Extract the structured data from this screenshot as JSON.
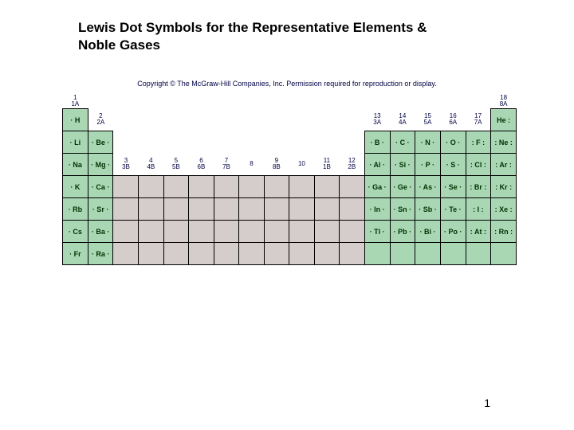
{
  "title": "Lewis Dot Symbols for the Representative Elements & Noble Gases",
  "copyright": "Copyright © The McGraw-Hill Companies, Inc. Permission required for reproduction or display.",
  "page_number": "1",
  "colors": {
    "green_cell": "#a9d7b4",
    "gray_cell": "#d5cccc",
    "border": "#000000",
    "title_text": "#000000",
    "header_text": "#000044",
    "bg": "#ffffff"
  },
  "group_headers": [
    {
      "col": 0,
      "num": "1",
      "old": "1A"
    },
    {
      "col": 1,
      "num": "2",
      "old": "2A"
    },
    {
      "col": 2,
      "num": "3",
      "old": "3B"
    },
    {
      "col": 3,
      "num": "4",
      "old": "4B"
    },
    {
      "col": 4,
      "num": "5",
      "old": "5B"
    },
    {
      "col": 5,
      "num": "6",
      "old": "6B"
    },
    {
      "col": 6,
      "num": "7",
      "old": "7B"
    },
    {
      "col": 7,
      "num": "8",
      "old": ""
    },
    {
      "col": 8,
      "num": "9",
      "old": "8B"
    },
    {
      "col": 9,
      "num": "10",
      "old": ""
    },
    {
      "col": 10,
      "num": "11",
      "old": "1B"
    },
    {
      "col": 11,
      "num": "12",
      "old": "2B"
    },
    {
      "col": 12,
      "num": "13",
      "old": "3A"
    },
    {
      "col": 13,
      "num": "14",
      "old": "4A"
    },
    {
      "col": 14,
      "num": "15",
      "old": "5A"
    },
    {
      "col": 15,
      "num": "16",
      "old": "6A"
    },
    {
      "col": 16,
      "num": "17",
      "old": "7A"
    },
    {
      "col": 17,
      "num": "18",
      "old": "8A"
    }
  ],
  "elements": {
    "r1": {
      "c0": "· H",
      "c17": "He :"
    },
    "r2": {
      "c0": "· Li",
      "c1": "· Be ·",
      "c12": "· B ·",
      "c13": "· C ·",
      "c14": "· N ·",
      "c15": "· O ·",
      "c16": ": F :",
      "c17": ": Ne :"
    },
    "r3": {
      "c0": "· Na",
      "c1": "· Mg ·",
      "c12": "· Al ·",
      "c13": "· Si ·",
      "c14": "· P ·",
      "c15": "· S ·",
      "c16": ": Cl :",
      "c17": ": Ar :"
    },
    "r4": {
      "c0": "· K",
      "c1": "· Ca ·",
      "c12": "· Ga ·",
      "c13": "· Ge ·",
      "c14": "· As ·",
      "c15": "· Se ·",
      "c16": ": Br :",
      "c17": ": Kr :"
    },
    "r5": {
      "c0": "· Rb",
      "c1": "· Sr ·",
      "c12": "· In ·",
      "c13": "· Sn ·",
      "c14": "· Sb ·",
      "c15": "· Te ·",
      "c16": ": I :",
      "c17": ": Xe :"
    },
    "r6": {
      "c0": "· Cs",
      "c1": "· Ba ·",
      "c12": "· Tl ·",
      "c13": "· Pb ·",
      "c14": "· Bi ·",
      "c15": "· Po ·",
      "c16": ": At :",
      "c17": ": Rn :"
    },
    "r7": {
      "c0": "· Fr",
      "c1": "· Ra ·"
    }
  }
}
